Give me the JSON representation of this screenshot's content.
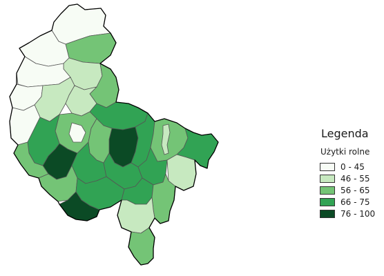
{
  "legend": {
    "title": "Legenda",
    "subtitle": "Użytki rolne",
    "items": [
      {
        "label": "0 - 45",
        "color": "#f7fcf5"
      },
      {
        "label": "46 - 55",
        "color": "#c7e9c0"
      },
      {
        "label": "56 - 65",
        "color": "#74c476"
      },
      {
        "label": "66 - 75",
        "color": "#31a354"
      },
      {
        "label": "76 - 100",
        "color": "#0b4a25"
      }
    ]
  },
  "regions": [
    {
      "cls": 0
    },
    {
      "cls": 2
    },
    {
      "cls": 0
    },
    {
      "cls": 1
    },
    {
      "cls": 0
    },
    {
      "cls": 0
    },
    {
      "cls": 1
    },
    {
      "cls": 2
    },
    {
      "cls": 1
    },
    {
      "cls": 0
    },
    {
      "cls": 3
    },
    {
      "cls": 2
    },
    {
      "cls": 0
    },
    {
      "cls": 4
    },
    {
      "cls": 3
    },
    {
      "cls": 2
    },
    {
      "cls": 4
    },
    {
      "cls": 3
    },
    {
      "cls": 2
    },
    {
      "cls": 3
    },
    {
      "cls": 2
    },
    {
      "cls": 3
    },
    {
      "cls": 2
    },
    {
      "cls": 1
    },
    {
      "cls": 3
    },
    {
      "cls": 3
    },
    {
      "cls": 4
    },
    {
      "cls": 3
    },
    {
      "cls": 3
    },
    {
      "cls": 1
    },
    {
      "cls": 2
    },
    {
      "cls": 1
    },
    {
      "cls": 2
    }
  ]
}
